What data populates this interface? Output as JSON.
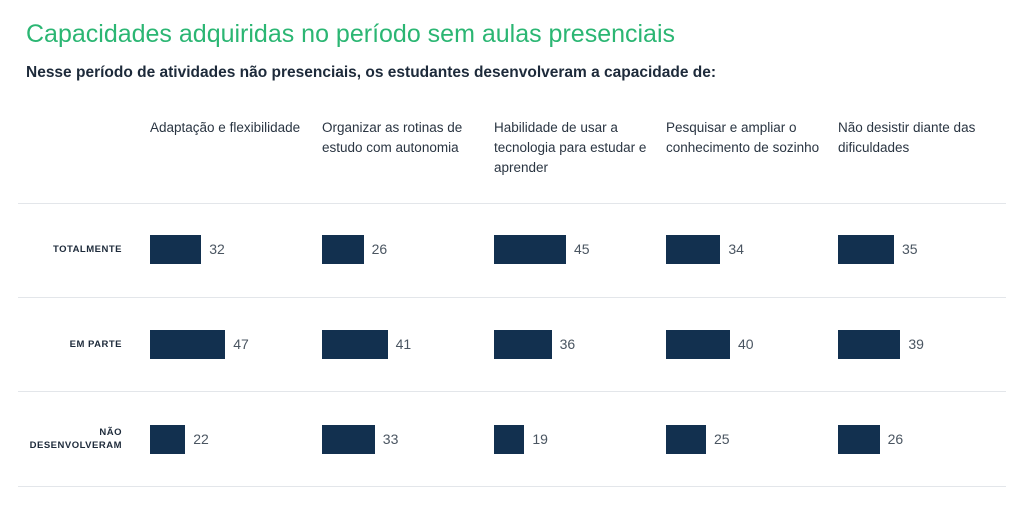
{
  "title": "Capacidades adquiridas no período sem aulas presenciais",
  "subtitle": "Nesse período de atividades não presenciais, os estudantes desenvolveram a capacidade de:",
  "colors": {
    "title": "#2bb673",
    "bar": "#12304f"
  },
  "chart_data": {
    "type": "bar",
    "title": "Capacidades adquiridas no período sem aulas presenciais",
    "categories": [
      "Adaptação e flexibilidade",
      "Organizar as rotinas de estudo com autonomia",
      "Habilidade de usar a tecnologia para estudar e aprender",
      "Pesquisar e ampliar o conhecimento de sozinho",
      "Não desistir diante das dificuldades"
    ],
    "series": [
      {
        "name": "TOTALMENTE",
        "values": [
          32,
          26,
          45,
          34,
          35
        ]
      },
      {
        "name": "EM PARTE",
        "values": [
          47,
          41,
          36,
          40,
          39
        ]
      },
      {
        "name": "NÃO DESENVOLVERAM",
        "values": [
          22,
          33,
          19,
          25,
          26
        ]
      }
    ],
    "grid": false,
    "legend": "none"
  }
}
